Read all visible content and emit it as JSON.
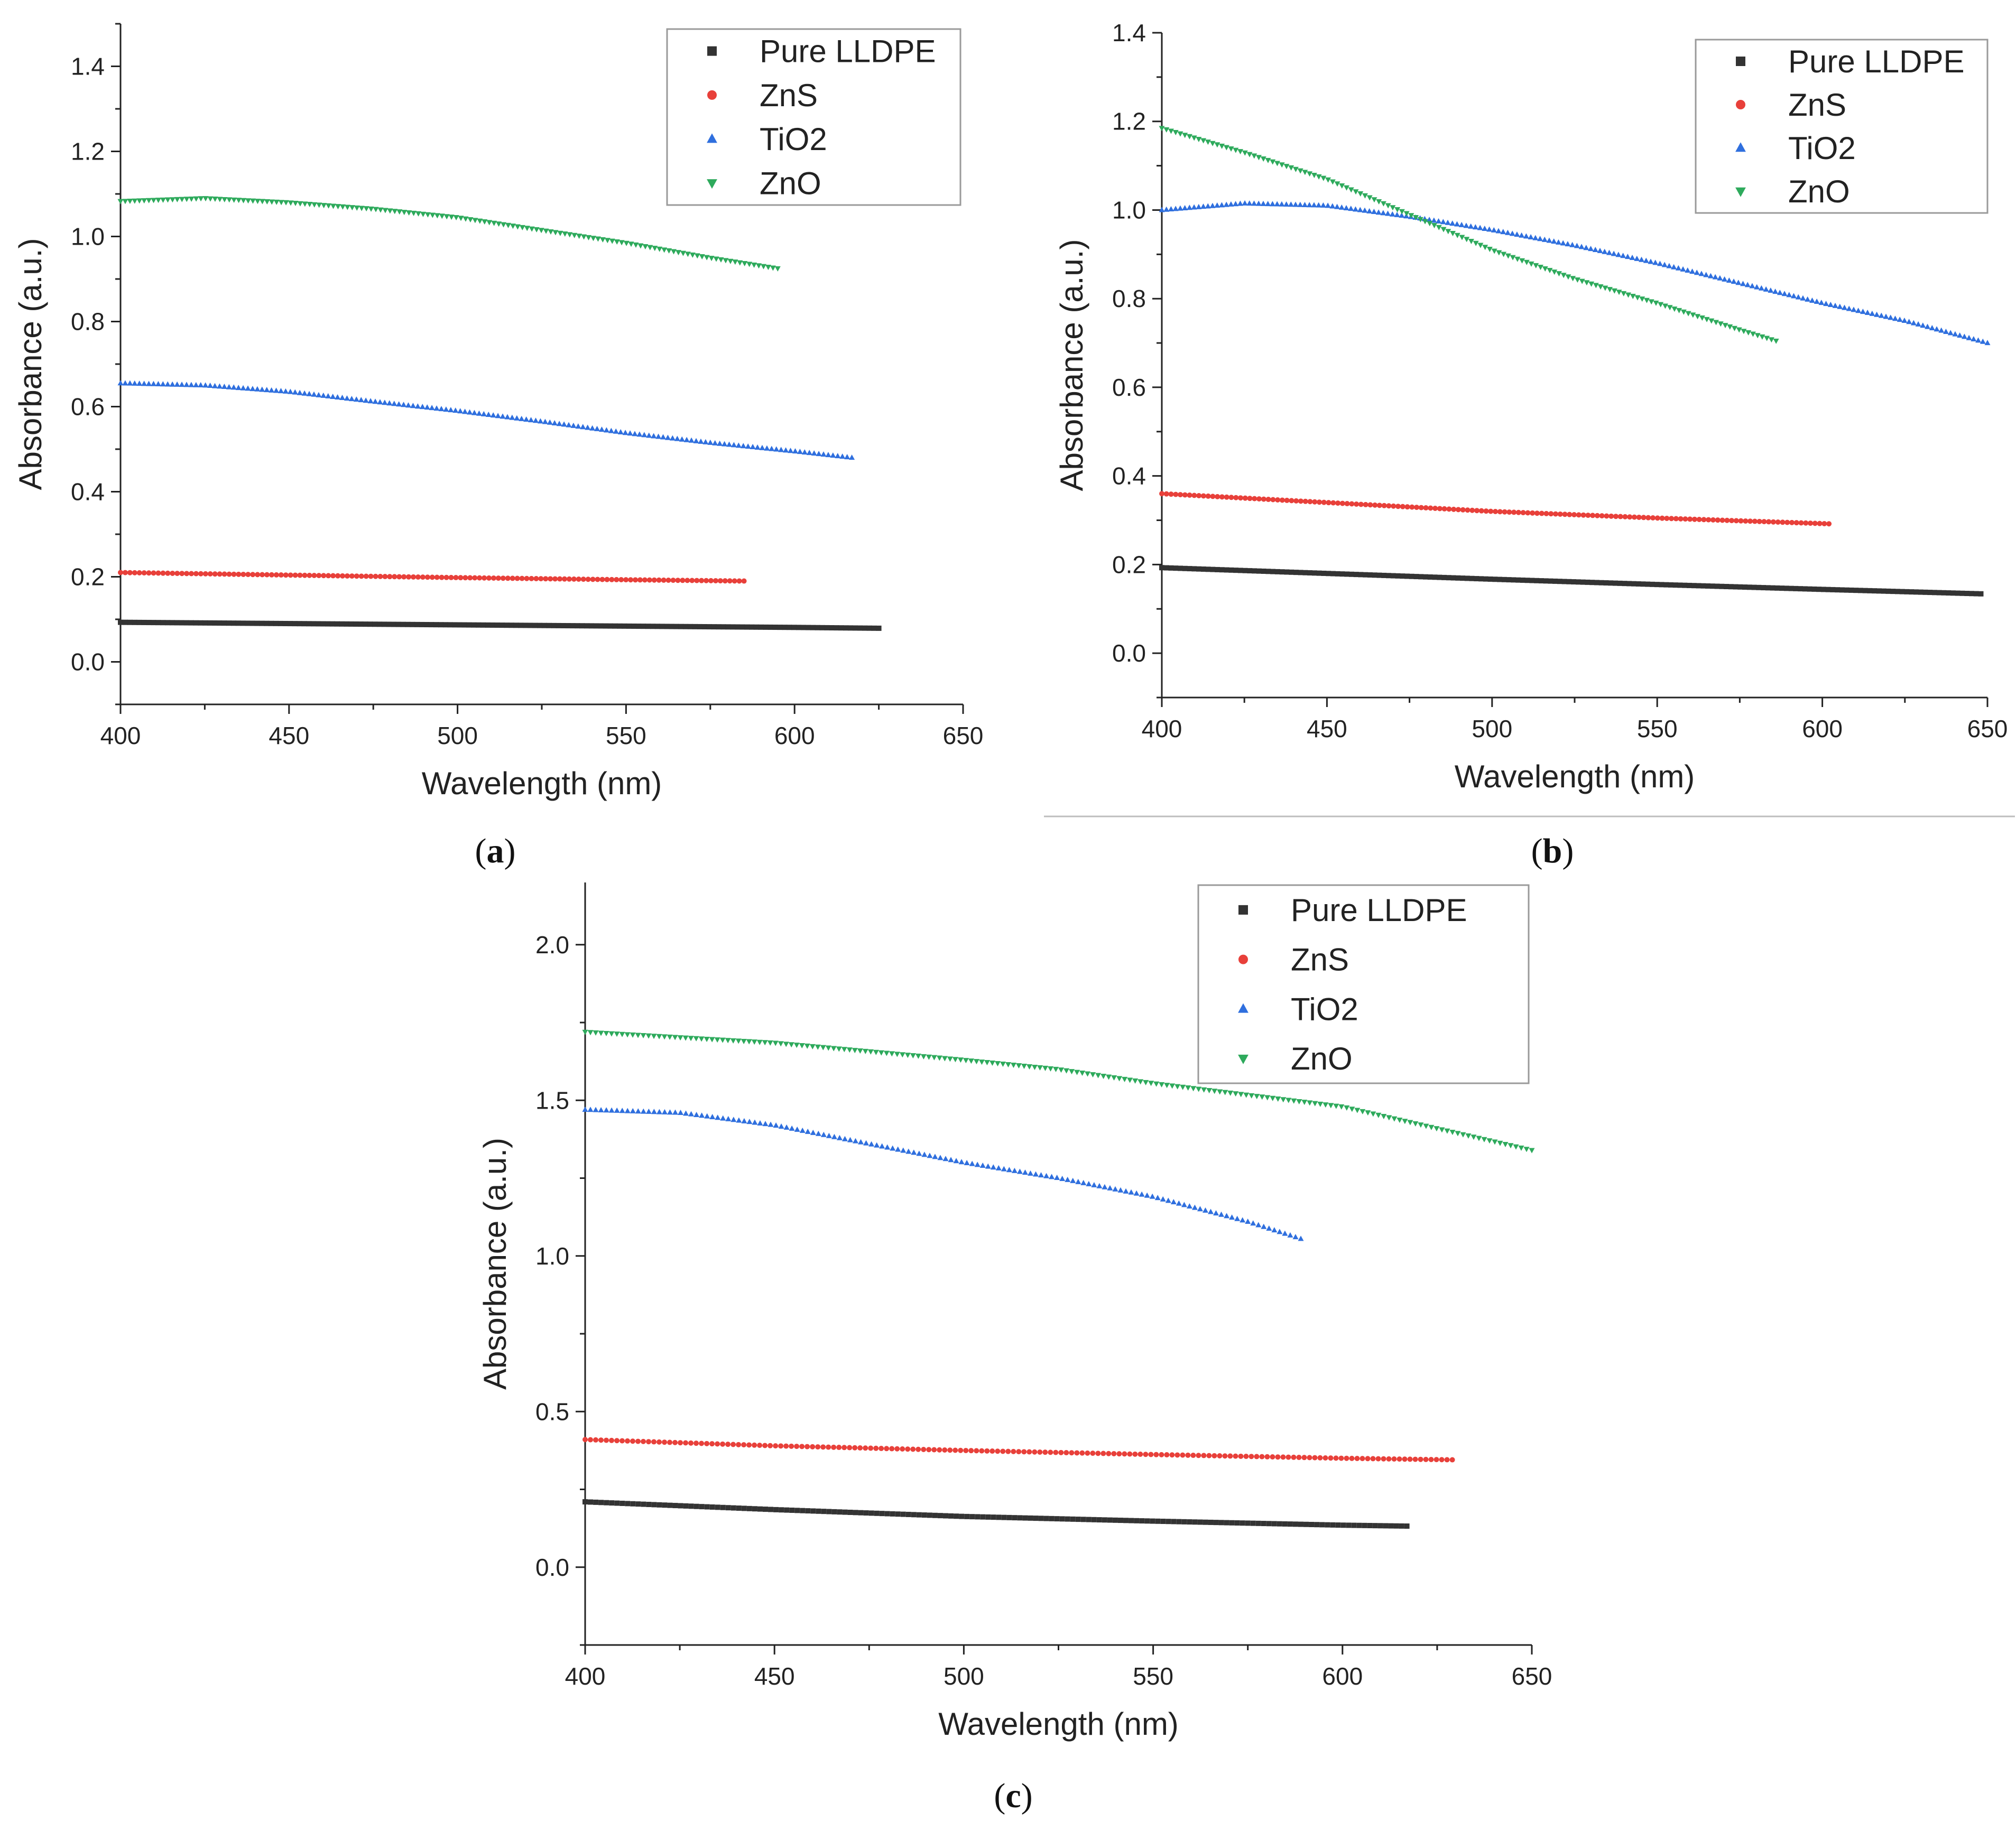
{
  "chart_data": [
    {
      "panel": "a",
      "type": "scatter",
      "title": "",
      "panel_label": "a",
      "xlabel": "Wavelength (nm)",
      "ylabel": "Absorbance (a.u.)",
      "xlim": [
        400,
        650
      ],
      "ylim": [
        -0.1,
        1.5
      ],
      "xticks": [
        "400",
        "450",
        "500",
        "550",
        "600",
        "650"
      ],
      "yticks": [
        "0.0",
        "0.2",
        "0.4",
        "0.6",
        "0.8",
        "1.0",
        "1.2",
        "1.4"
      ],
      "legend": [
        "Pure LLDPE",
        "ZnS",
        "TiO2",
        "ZnO"
      ],
      "series": [
        {
          "name": "Pure LLDPE",
          "marker": "square",
          "color": "#333333",
          "x_range": [
            400,
            625
          ],
          "x": [
            400,
            450,
            500,
            550,
            600,
            625
          ],
          "values": [
            0.093,
            0.09,
            0.087,
            0.084,
            0.081,
            0.079
          ]
        },
        {
          "name": "ZnS",
          "marker": "circle",
          "color": "#e8403a",
          "x_range": [
            400,
            585
          ],
          "x": [
            400,
            450,
            500,
            550,
            585
          ],
          "values": [
            0.21,
            0.204,
            0.198,
            0.193,
            0.19
          ]
        },
        {
          "name": "TiO2",
          "marker": "triangle-up",
          "color": "#2f6fde",
          "x_range": [
            400,
            617
          ],
          "x": [
            400,
            425,
            450,
            475,
            500,
            525,
            550,
            575,
            600,
            617
          ],
          "values": [
            0.655,
            0.65,
            0.635,
            0.612,
            0.59,
            0.565,
            0.538,
            0.515,
            0.495,
            0.48
          ]
        },
        {
          "name": "ZnO",
          "marker": "triangle-down",
          "color": "#2eaa5c",
          "x_range": [
            400,
            595
          ],
          "x": [
            400,
            425,
            450,
            475,
            500,
            525,
            550,
            575,
            595
          ],
          "values": [
            1.083,
            1.09,
            1.08,
            1.065,
            1.045,
            1.015,
            0.985,
            0.95,
            0.925
          ]
        }
      ]
    },
    {
      "panel": "b",
      "type": "scatter",
      "title": "",
      "panel_label": "b",
      "xlabel": "Wavelength (nm)",
      "ylabel": "Absorbance (a.u.)",
      "xlim": [
        400,
        650
      ],
      "ylim": [
        -0.1,
        1.4
      ],
      "xticks": [
        "400",
        "450",
        "500",
        "550",
        "600",
        "650"
      ],
      "yticks": [
        "0.0",
        "0.2",
        "0.4",
        "0.6",
        "0.8",
        "1.0",
        "1.2",
        "1.4"
      ],
      "legend": [
        "Pure LLDPE",
        "ZnS",
        "TiO2",
        "ZnO"
      ],
      "series": [
        {
          "name": "Pure LLDPE",
          "marker": "square",
          "color": "#333333",
          "x_range": [
            400,
            648
          ],
          "x": [
            400,
            450,
            500,
            550,
            600,
            648
          ],
          "values": [
            0.193,
            0.18,
            0.167,
            0.155,
            0.144,
            0.134
          ]
        },
        {
          "name": "ZnS",
          "marker": "circle",
          "color": "#e8403a",
          "x_range": [
            400,
            602
          ],
          "x": [
            400,
            450,
            500,
            550,
            602
          ],
          "values": [
            0.36,
            0.34,
            0.32,
            0.305,
            0.292
          ]
        },
        {
          "name": "TiO2",
          "marker": "triangle-up",
          "color": "#2f6fde",
          "x_range": [
            400,
            650
          ],
          "x": [
            400,
            425,
            450,
            475,
            500,
            525,
            550,
            575,
            600,
            625,
            650
          ],
          "values": [
            1.0,
            1.015,
            1.01,
            0.985,
            0.955,
            0.92,
            0.88,
            0.835,
            0.79,
            0.75,
            0.7
          ]
        },
        {
          "name": "ZnO",
          "marker": "triangle-down",
          "color": "#2eaa5c",
          "x_range": [
            400,
            586
          ],
          "x": [
            400,
            425,
            450,
            475,
            500,
            525,
            550,
            575,
            586
          ],
          "values": [
            1.185,
            1.13,
            1.07,
            0.99,
            0.91,
            0.845,
            0.79,
            0.73,
            0.705
          ]
        }
      ]
    },
    {
      "panel": "c",
      "type": "scatter",
      "title": "",
      "panel_label": "c",
      "xlabel": "Wavelength (nm)",
      "ylabel": "Absorbance (a.u.)",
      "xlim": [
        400,
        650
      ],
      "ylim": [
        -0.25,
        2.2
      ],
      "xticks": [
        "400",
        "450",
        "500",
        "550",
        "600",
        "650"
      ],
      "yticks": [
        "0.0",
        "0.5",
        "1.0",
        "1.5",
        "2.0"
      ],
      "legend": [
        "Pure LLDPE",
        "ZnS",
        "TiO2",
        "ZnO"
      ],
      "series": [
        {
          "name": "Pure LLDPE",
          "marker": "square",
          "color": "#333333",
          "x_range": [
            400,
            617
          ],
          "x": [
            400,
            450,
            500,
            550,
            600,
            617
          ],
          "values": [
            0.21,
            0.185,
            0.163,
            0.148,
            0.135,
            0.132
          ]
        },
        {
          "name": "ZnS",
          "marker": "circle",
          "color": "#e8403a",
          "x_range": [
            400,
            629
          ],
          "x": [
            400,
            450,
            500,
            550,
            600,
            629
          ],
          "values": [
            0.41,
            0.39,
            0.375,
            0.362,
            0.35,
            0.345
          ]
        },
        {
          "name": "TiO2",
          "marker": "triangle-up",
          "color": "#2f6fde",
          "x_range": [
            400,
            589
          ],
          "x": [
            400,
            425,
            450,
            475,
            500,
            525,
            550,
            575,
            589
          ],
          "values": [
            1.47,
            1.46,
            1.42,
            1.36,
            1.3,
            1.25,
            1.19,
            1.11,
            1.055
          ]
        },
        {
          "name": "ZnO",
          "marker": "triangle-down",
          "color": "#2eaa5c",
          "x_range": [
            400,
            650
          ],
          "x": [
            400,
            450,
            500,
            525,
            550,
            600,
            650
          ],
          "values": [
            1.72,
            1.685,
            1.63,
            1.6,
            1.555,
            1.48,
            1.34
          ]
        }
      ]
    }
  ]
}
